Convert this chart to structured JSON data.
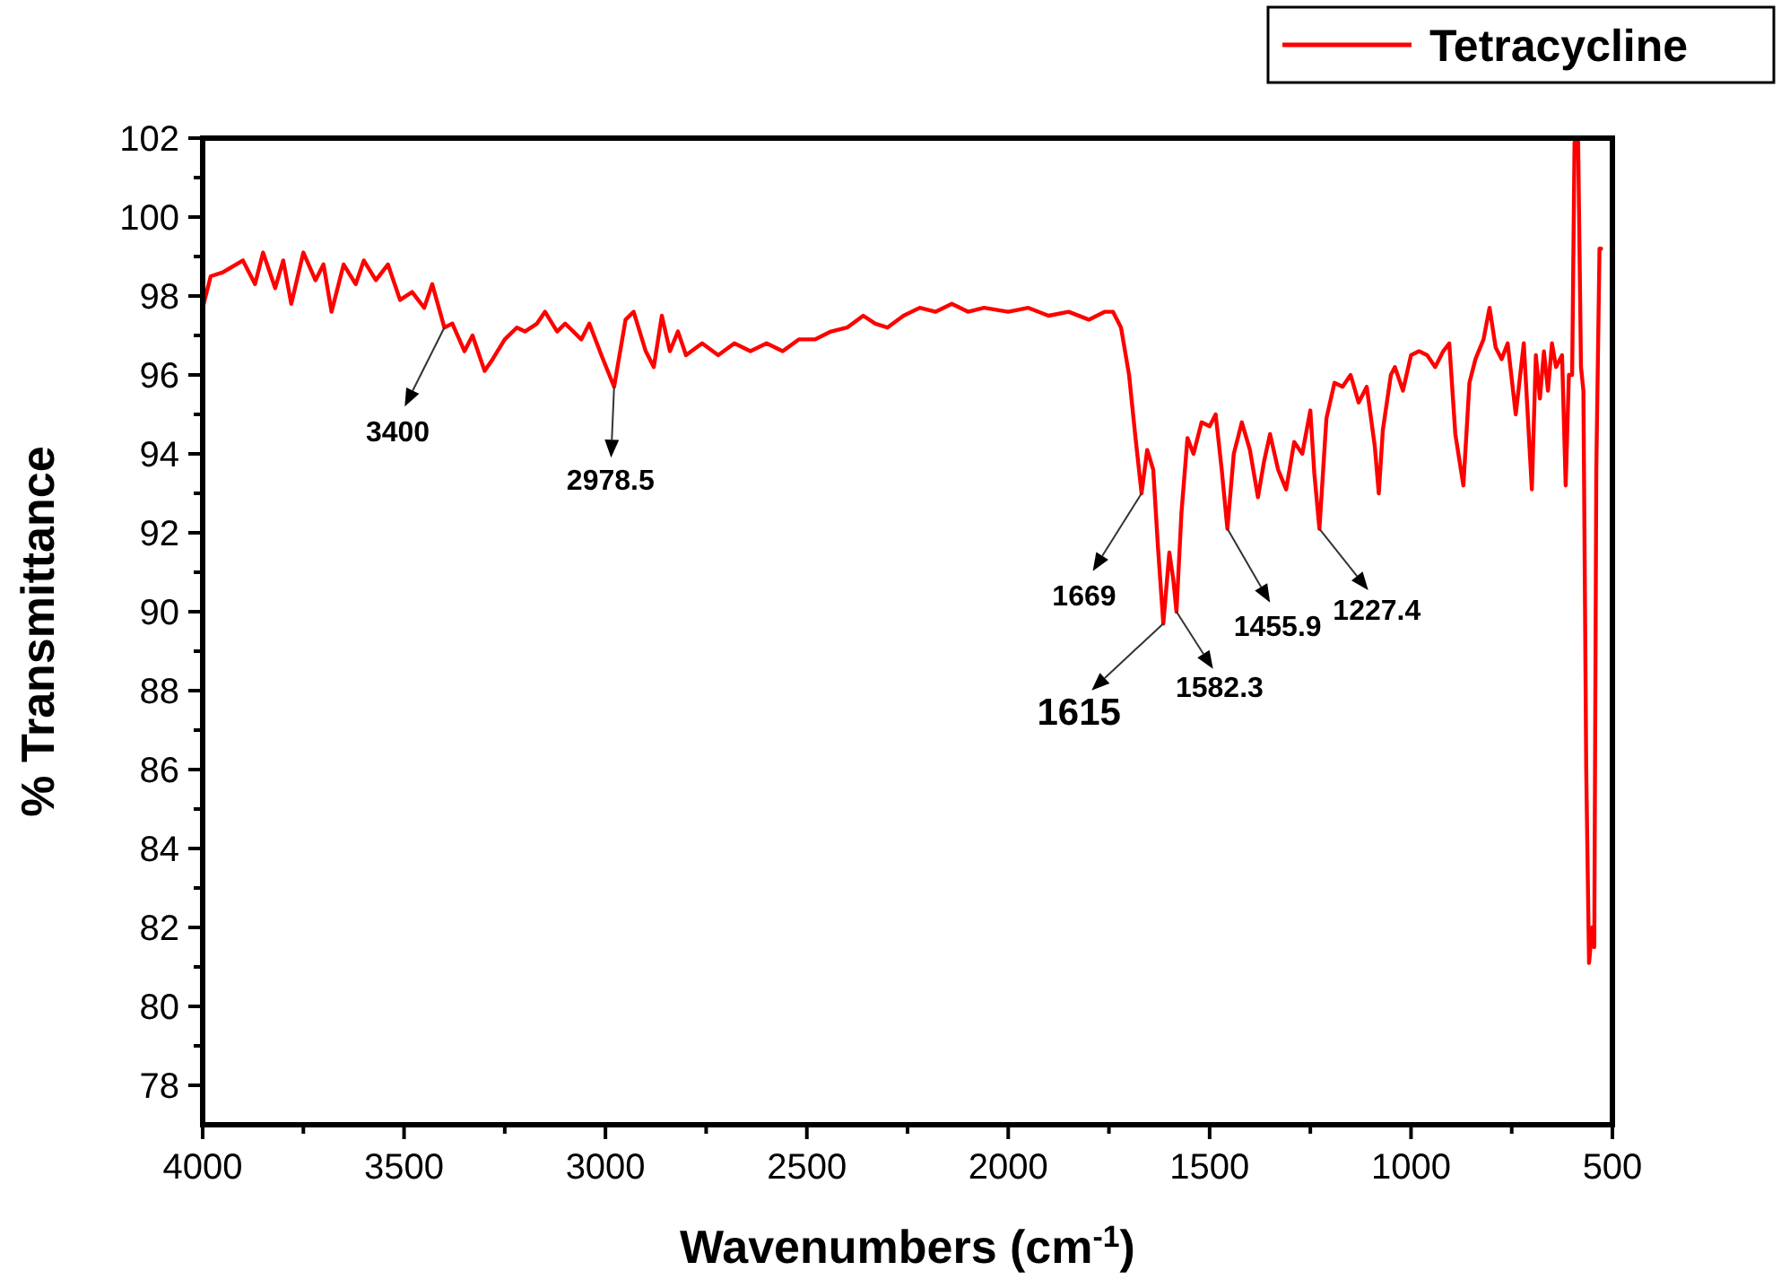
{
  "chart_data": {
    "type": "line",
    "xlabel": "Wavenumbers (cm$^{-1}$)",
    "ylabel": "% Transmittance",
    "xlim": [
      4000,
      500
    ],
    "ylim": [
      77,
      102
    ],
    "xticks": [
      4000,
      {
        "value": 3750,
        "label": null
      },
      3500,
      {
        "value": 3250,
        "label": null
      },
      3000,
      {
        "value": 2750,
        "label": null
      },
      2500,
      {
        "value": 2250,
        "label": null
      },
      2000,
      {
        "value": 1750,
        "label": null
      },
      1500,
      {
        "value": 1250,
        "label": null
      },
      1000,
      {
        "value": 750,
        "label": null
      },
      500
    ],
    "yticks": [
      78,
      {
        "value": 79,
        "label": null
      },
      80,
      {
        "value": 81,
        "label": null
      },
      82,
      {
        "value": 83,
        "label": null
      },
      84,
      {
        "value": 85,
        "label": null
      },
      86,
      {
        "value": 87,
        "label": null
      },
      88,
      {
        "value": 89,
        "label": null
      },
      90,
      {
        "value": 91,
        "label": null
      },
      92,
      {
        "value": 93,
        "label": null
      },
      94,
      {
        "value": 95,
        "label": null
      },
      96,
      {
        "value": 97,
        "label": null
      },
      98,
      {
        "value": 99,
        "label": null
      },
      100,
      {
        "value": 101,
        "label": null
      },
      102
    ],
    "grid": false,
    "legend": "top right",
    "marker": "none",
    "line_style": "solid",
    "annotations": [
      {
        "text": "3400",
        "x": 3400,
        "y": 97.2
      },
      {
        "text": "2978.5",
        "x": 2978.5,
        "y": 95.7
      },
      {
        "text": "1669",
        "x": 1669,
        "y": 93.0
      },
      {
        "text": "1615",
        "x": 1615,
        "y": 89.7
      },
      {
        "text": "1582.3",
        "x": 1582.3,
        "y": 90.0
      },
      {
        "text": "1455.9",
        "x": 1455.9,
        "y": 92.1
      },
      {
        "text": "1227.4",
        "x": 1227.4,
        "y": 92.1
      }
    ],
    "series": [
      {
        "name": "Tetracycline",
        "color": "#ff0000",
        "x": [
          4000,
          3980,
          3950,
          3900,
          3870,
          3850,
          3820,
          3800,
          3780,
          3750,
          3720,
          3700,
          3680,
          3650,
          3620,
          3600,
          3570,
          3540,
          3510,
          3480,
          3450,
          3430,
          3400,
          3380,
          3350,
          3330,
          3300,
          3280,
          3250,
          3220,
          3200,
          3170,
          3150,
          3120,
          3100,
          3060,
          3040,
          3010,
          2978.5,
          2950,
          2930,
          2900,
          2880,
          2860,
          2840,
          2820,
          2800,
          2760,
          2720,
          2680,
          2640,
          2600,
          2560,
          2520,
          2480,
          2440,
          2400,
          2360,
          2330,
          2300,
          2260,
          2220,
          2180,
          2140,
          2100,
          2060,
          2000,
          1950,
          1900,
          1850,
          1800,
          1760,
          1740,
          1720,
          1700,
          1685,
          1669,
          1655,
          1640,
          1628,
          1615,
          1600,
          1590,
          1582.3,
          1570,
          1555,
          1540,
          1520,
          1500,
          1485,
          1470,
          1455.9,
          1440,
          1420,
          1400,
          1380,
          1365,
          1350,
          1330,
          1310,
          1290,
          1270,
          1250,
          1240,
          1227.4,
          1210,
          1190,
          1170,
          1150,
          1130,
          1110,
          1090,
          1080,
          1070,
          1050,
          1040,
          1020,
          1000,
          980,
          960,
          940,
          920,
          905,
          890,
          870,
          855,
          840,
          820,
          805,
          790,
          775,
          760,
          740,
          720,
          700,
          690,
          680,
          670,
          660,
          650,
          640,
          625,
          616,
          608,
          600,
          594,
          585,
          578,
          572,
          565,
          558,
          550,
          545,
          540,
          532,
          528
        ],
        "values": [
          97.7,
          98.5,
          98.6,
          98.9,
          98.3,
          99.1,
          98.2,
          98.9,
          97.8,
          99.1,
          98.4,
          98.8,
          97.6,
          98.8,
          98.3,
          98.9,
          98.4,
          98.8,
          97.9,
          98.1,
          97.7,
          98.3,
          97.2,
          97.3,
          96.6,
          97.0,
          96.1,
          96.4,
          96.9,
          97.2,
          97.1,
          97.3,
          97.6,
          97.1,
          97.3,
          96.9,
          97.3,
          96.5,
          95.7,
          97.4,
          97.6,
          96.6,
          96.2,
          97.5,
          96.6,
          97.1,
          96.5,
          96.8,
          96.5,
          96.8,
          96.6,
          96.8,
          96.6,
          96.9,
          96.9,
          97.1,
          97.2,
          97.5,
          97.3,
          97.2,
          97.5,
          97.7,
          97.6,
          97.8,
          97.6,
          97.7,
          97.6,
          97.7,
          97.5,
          97.6,
          97.4,
          97.6,
          97.6,
          97.2,
          96.0,
          94.5,
          93.0,
          94.1,
          93.6,
          91.6,
          89.7,
          91.5,
          90.8,
          90.0,
          92.5,
          94.4,
          94.0,
          94.8,
          94.7,
          95.0,
          93.6,
          92.1,
          94.0,
          94.8,
          94.1,
          92.9,
          93.8,
          94.5,
          93.6,
          93.1,
          94.3,
          94.0,
          95.1,
          93.5,
          92.1,
          94.9,
          95.8,
          95.7,
          96.0,
          95.3,
          95.7,
          94.2,
          93.0,
          94.6,
          96.0,
          96.2,
          95.6,
          96.5,
          96.6,
          96.5,
          96.2,
          96.6,
          96.8,
          94.5,
          93.2,
          95.8,
          96.4,
          96.9,
          97.7,
          96.7,
          96.4,
          96.8,
          95.0,
          96.8,
          93.1,
          96.5,
          95.4,
          96.6,
          95.6,
          96.8,
          96.2,
          96.5,
          93.2,
          96.0,
          96.0,
          101.9,
          101.9,
          96.2,
          95.6,
          86.0,
          81.1,
          82.0,
          81.5,
          93.6,
          99.2,
          99.2
        ]
      }
    ]
  }
}
